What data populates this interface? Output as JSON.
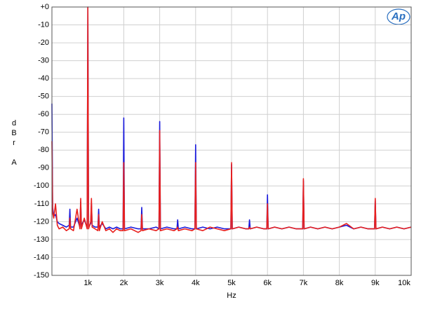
{
  "chart_data": {
    "type": "line",
    "logo": "Ap",
    "x_label": "Hz",
    "y_label": [
      "d",
      "B",
      "r",
      "A"
    ],
    "xlim": [
      0,
      10000
    ],
    "ylim": [
      -150,
      0
    ],
    "grid": true,
    "xticks": [
      {
        "value": 1000,
        "label": "1k"
      },
      {
        "value": 2000,
        "label": "2k"
      },
      {
        "value": 3000,
        "label": "3k"
      },
      {
        "value": 4000,
        "label": "4k"
      },
      {
        "value": 5000,
        "label": "5k"
      },
      {
        "value": 6000,
        "label": "6k"
      },
      {
        "value": 7000,
        "label": "7k"
      },
      {
        "value": 8000,
        "label": "8k"
      },
      {
        "value": 9000,
        "label": "9k"
      },
      {
        "value": 10000,
        "label": "10k"
      }
    ],
    "yticks": [
      {
        "value": 0,
        "label": "+0"
      },
      -10,
      -20,
      -30,
      -40,
      -50,
      -60,
      -70,
      -80,
      -90,
      -100,
      -110,
      -120,
      -130,
      -140,
      -150
    ],
    "x": [
      0,
      20,
      50,
      100,
      150,
      200,
      300,
      400,
      480,
      500,
      520,
      600,
      700,
      780,
      800,
      820,
      900,
      980,
      1000,
      1020,
      1080,
      1100,
      1120,
      1200,
      1280,
      1300,
      1320,
      1400,
      1500,
      1600,
      1700,
      1800,
      1900,
      1980,
      2000,
      2020,
      2200,
      2400,
      2480,
      2500,
      2520,
      2700,
      2900,
      2980,
      3000,
      3020,
      3200,
      3400,
      3480,
      3500,
      3520,
      3700,
      3900,
      3980,
      4000,
      4020,
      4200,
      4400,
      4600,
      4800,
      4980,
      5000,
      5020,
      5200,
      5400,
      5480,
      5500,
      5520,
      5700,
      5900,
      5980,
      6000,
      6020,
      6200,
      6400,
      6600,
      6800,
      6980,
      7000,
      7020,
      7200,
      7400,
      7600,
      7800,
      8000,
      8200,
      8400,
      8600,
      8800,
      8980,
      9000,
      9020,
      9200,
      9400,
      9600,
      9800,
      10000
    ],
    "series": [
      {
        "color": "#1a1adb",
        "values": [
          -54,
          -112,
          -117,
          -116,
          -120,
          -121,
          -122,
          -123,
          -122,
          -113,
          -123,
          -123,
          -118,
          -123,
          -109,
          -122,
          -119,
          -123,
          0,
          -123,
          -121,
          -110,
          -122,
          -123,
          -123,
          -113,
          -123,
          -121,
          -124,
          -123,
          -124,
          -123,
          -124,
          -124,
          -62,
          -124,
          -123,
          -124,
          -124,
          -112,
          -124,
          -124,
          -123,
          -124,
          -64,
          -124,
          -123,
          -124,
          -124,
          -119,
          -124,
          -123,
          -124,
          -124,
          -77,
          -124,
          -123,
          -124,
          -123,
          -124,
          -124,
          -88,
          -124,
          -123,
          -124,
          -124,
          -119,
          -124,
          -123,
          -124,
          -124,
          -105,
          -124,
          -123,
          -124,
          -123,
          -124,
          -124,
          -97,
          -124,
          -123,
          -124,
          -123,
          -124,
          -123,
          -122,
          -124,
          -123,
          -124,
          -124,
          -108,
          -124,
          -123,
          -124,
          -123,
          -124,
          -123
        ]
      },
      {
        "color": "#e8201e",
        "values": [
          -75,
          -115,
          -118,
          -110,
          -122,
          -124,
          -123,
          -125,
          -124,
          -118,
          -124,
          -125,
          -113,
          -124,
          -107,
          -124,
          -118,
          -124,
          0,
          -124,
          -120,
          -107,
          -123,
          -124,
          -125,
          -116,
          -125,
          -120,
          -125,
          -124,
          -126,
          -124,
          -125,
          -125,
          -87,
          -125,
          -124,
          -126,
          -125,
          -116,
          -125,
          -124,
          -125,
          -124,
          -69,
          -125,
          -124,
          -125,
          -124,
          -123,
          -125,
          -124,
          -125,
          -124,
          -87,
          -124,
          -125,
          -123,
          -124,
          -125,
          -124,
          -87,
          -124,
          -123,
          -124,
          -124,
          -123,
          -124,
          -123,
          -124,
          -124,
          -110,
          -124,
          -123,
          -124,
          -123,
          -124,
          -124,
          -96,
          -124,
          -123,
          -124,
          -123,
          -124,
          -123,
          -121,
          -124,
          -123,
          -124,
          -124,
          -107,
          -124,
          -123,
          -124,
          -123,
          -124,
          -123
        ]
      }
    ]
  }
}
